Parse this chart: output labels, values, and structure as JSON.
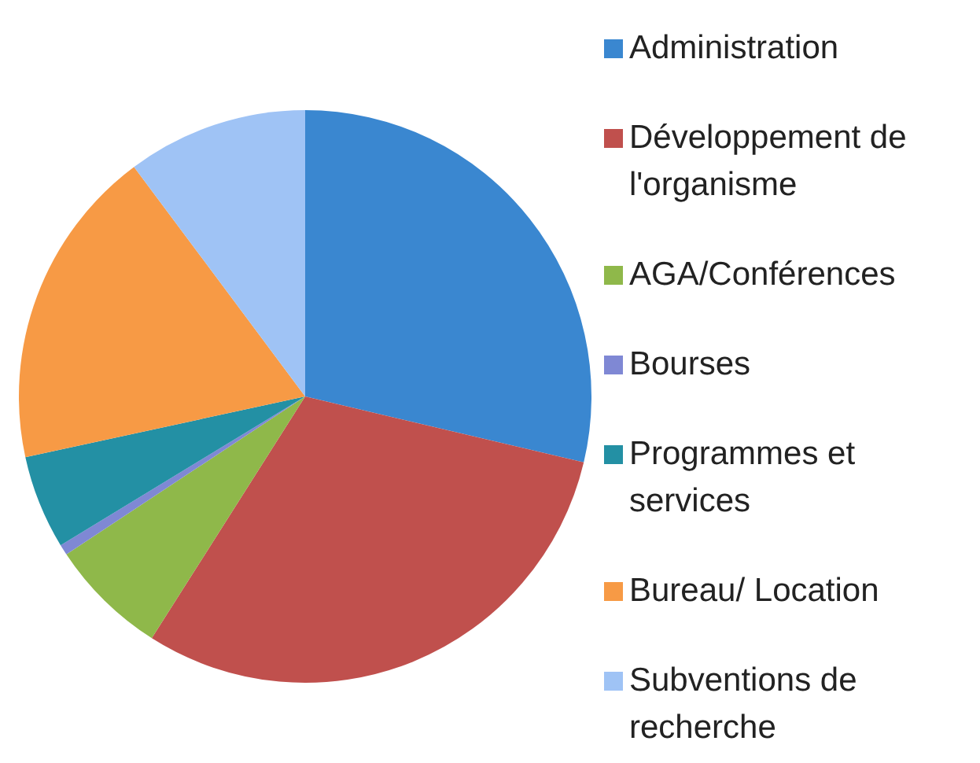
{
  "chart_data": {
    "type": "pie",
    "categories": [
      "Administration",
      "Développement de l'organisme",
      "AGA/Conférences",
      "Bourses",
      "Programmes et services",
      "Bureau/ Location",
      "Subventions de recherche"
    ],
    "values": [
      28.7,
      30.3,
      6.7,
      0.6,
      5.3,
      18.2,
      10.2
    ],
    "colors": [
      "#3a87d0",
      "#c0504d",
      "#8fb84a",
      "#7f88d4",
      "#2390a4",
      "#f79a45",
      "#9fc3f5"
    ],
    "legend": "right"
  }
}
